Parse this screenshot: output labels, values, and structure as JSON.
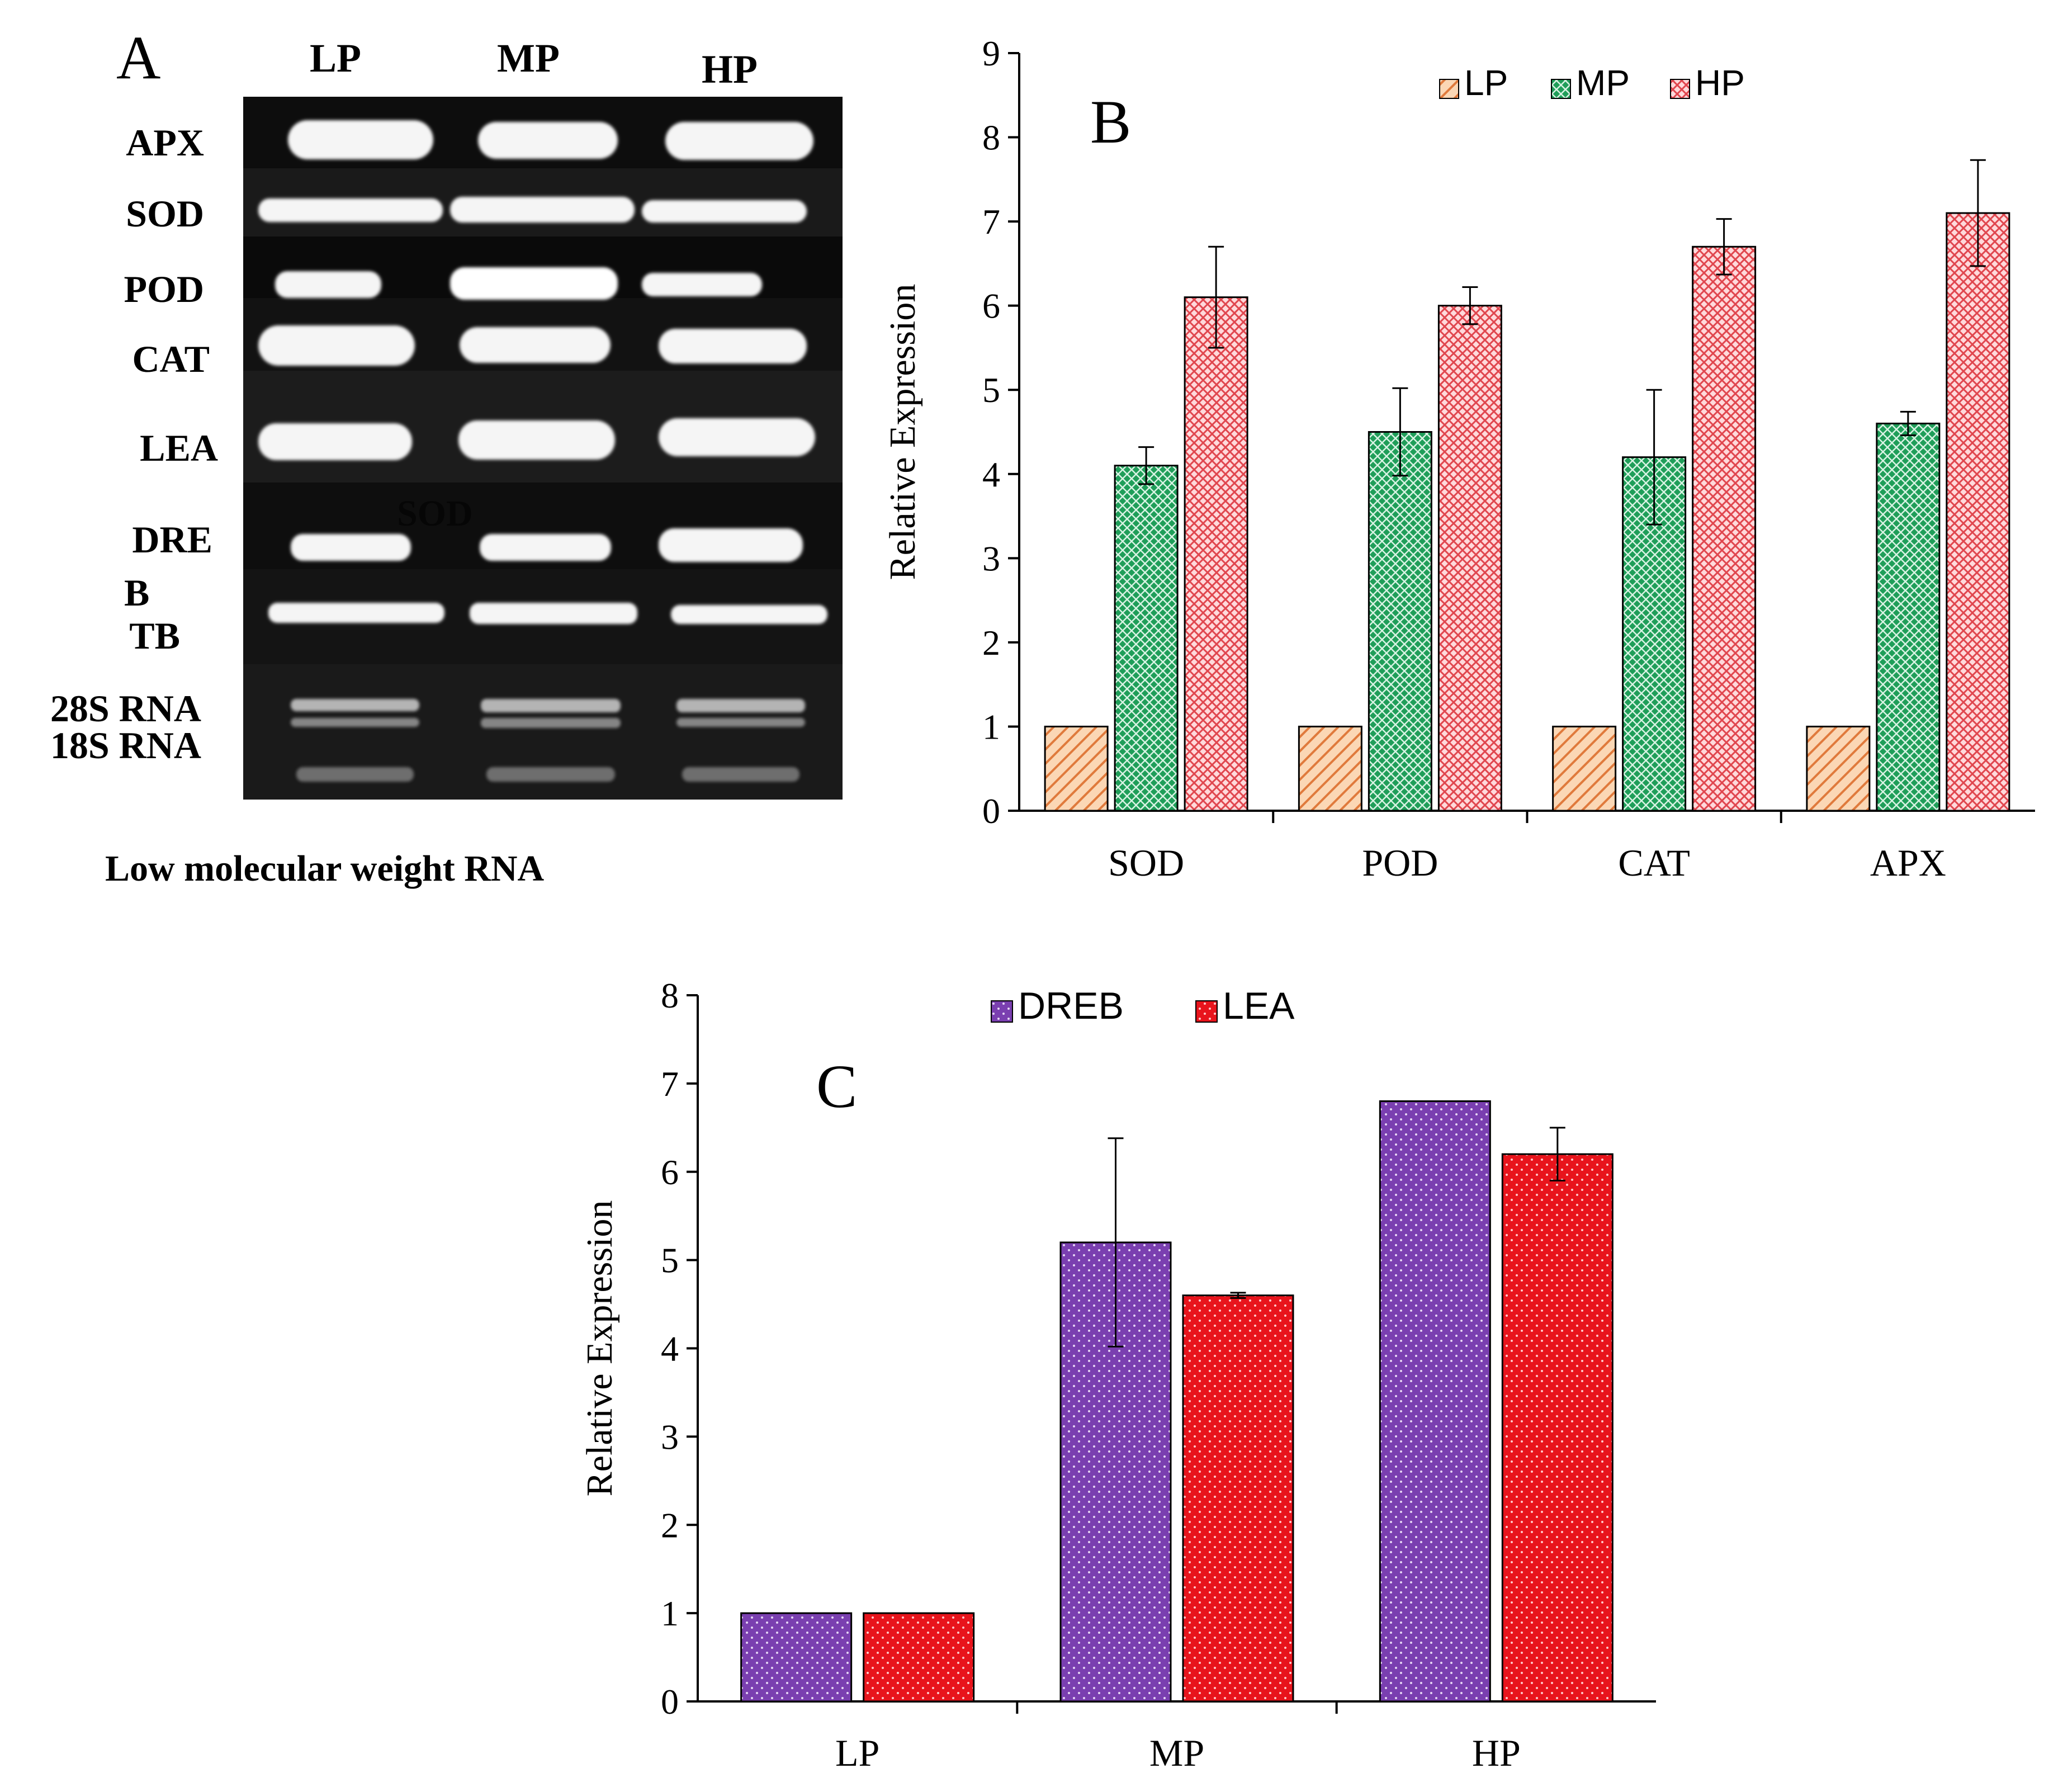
{
  "gel": {
    "panel_letter": "A",
    "lanes": [
      "LP",
      "MP",
      "HP"
    ],
    "rows": [
      "APX",
      "SOD",
      "POD",
      "CAT",
      "LEA",
      "DRE",
      "B",
      "TB",
      "28S RNA",
      "18S RNA"
    ],
    "overlay_text": "SOD",
    "caption": "Low molecular weight RNA"
  },
  "colors": {
    "LP_fill": "#f4a460",
    "LP_stroke": "#c0602c",
    "MP_fill": "#1f9e59",
    "MP_stroke": "#0d5e31",
    "HP_fill": "#f6a4a8",
    "HP_stroke": "#d9484f",
    "DREB_fill": "#7a3fb0",
    "DREB_stroke": "#3c1a63",
    "LEA_fill": "#e8141c",
    "LEA_stroke": "#8a0a0e"
  },
  "chart_data": [
    {
      "id": "B",
      "type": "bar",
      "panel_letter": "B",
      "title": "",
      "xlabel": "",
      "ylabel": "Relative Expression",
      "ylim": [
        0,
        9
      ],
      "yticks": [
        "0",
        "1",
        "2",
        "3",
        "4",
        "5",
        "6",
        "7",
        "8",
        "9"
      ],
      "categories": [
        "SOD",
        "POD",
        "CAT",
        "APX"
      ],
      "legend_position": "top-center",
      "series": [
        {
          "name": "LP",
          "values": [
            1,
            1,
            1,
            1
          ],
          "errors": [
            0,
            0,
            0,
            0
          ]
        },
        {
          "name": "MP",
          "values": [
            4.1,
            4.5,
            4.2,
            4.6
          ],
          "errors": [
            0.22,
            0.52,
            0.8,
            0.14
          ]
        },
        {
          "name": "HP",
          "values": [
            6.1,
            6.0,
            6.7,
            7.1
          ],
          "errors": [
            0.6,
            0.22,
            0.33,
            0.63
          ]
        }
      ]
    },
    {
      "id": "C",
      "type": "bar",
      "panel_letter": "C",
      "title": "",
      "xlabel": "",
      "ylabel": "Relative Expression",
      "ylim": [
        0,
        8
      ],
      "yticks": [
        "0",
        "1",
        "2",
        "3",
        "4",
        "5",
        "6",
        "7",
        "8"
      ],
      "categories": [
        "LP",
        "MP",
        "HP"
      ],
      "legend_position": "top-center",
      "series": [
        {
          "name": "DREB",
          "values": [
            1,
            5.2,
            6.8
          ],
          "errors": [
            0,
            1.18,
            0
          ]
        },
        {
          "name": "LEA",
          "values": [
            1,
            4.6,
            6.2
          ],
          "errors": [
            0,
            0.03,
            0.3
          ]
        }
      ]
    }
  ]
}
